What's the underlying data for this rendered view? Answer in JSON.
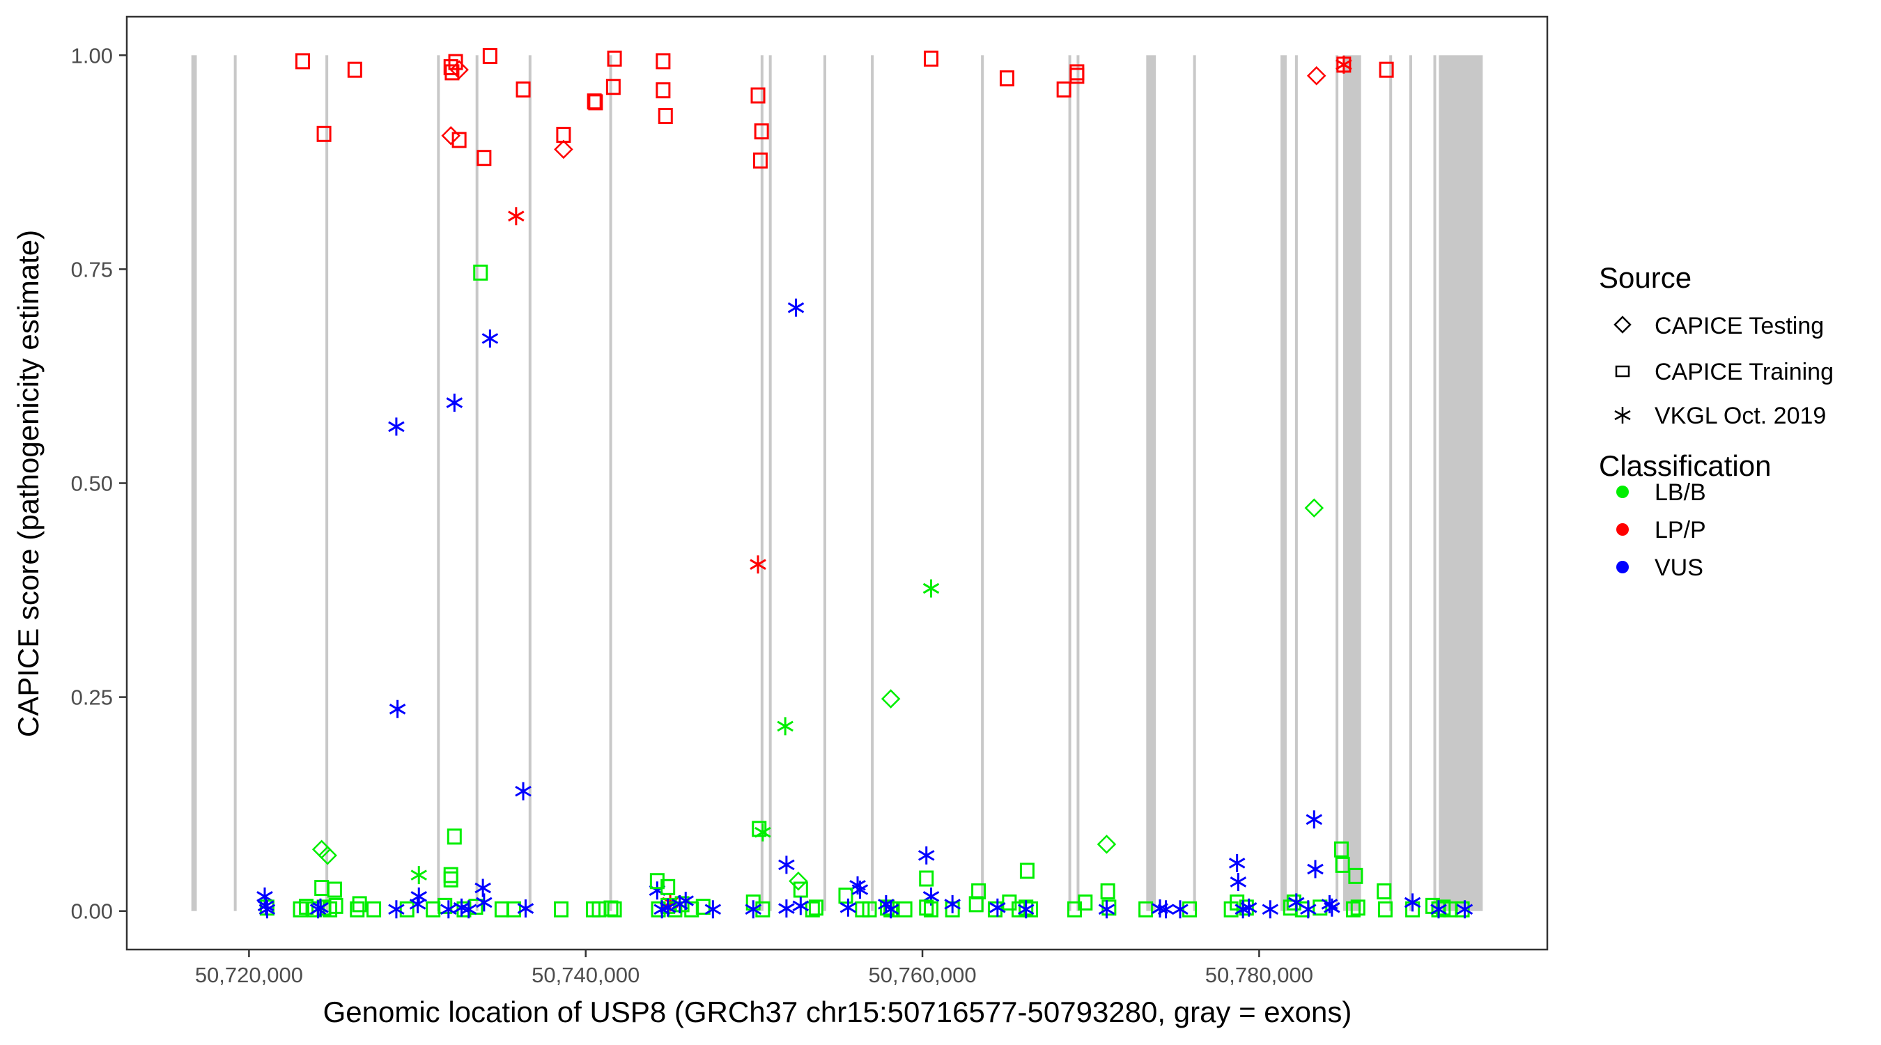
{
  "chart_data": {
    "type": "scatter",
    "xlabel": "Genomic location of USP8 (GRCh37 chr15:50716577-50793280, gray = exons)",
    "ylabel": "CAPICE score (pathogenicity estimate)",
    "xlim": [
      50712742,
      50797115
    ],
    "ylim": [
      -0.045,
      1.045
    ],
    "xticks": [
      50720000,
      50740000,
      50760000,
      50780000
    ],
    "xtick_labels": [
      "50,720,000",
      "50,740,000",
      "50,760,000",
      "50,780,000"
    ],
    "yticks": [
      0,
      0.25,
      0.5,
      0.75,
      1.0
    ],
    "ytick_labels": [
      "0.00",
      "0.25",
      "0.50",
      "0.75",
      "1.00"
    ],
    "grid": false,
    "legend_placement": "right",
    "legend": {
      "source_title": "Source",
      "sources": [
        {
          "label": "CAPICE Testing",
          "shape": "diamond"
        },
        {
          "label": "CAPICE Training",
          "shape": "square"
        },
        {
          "label": "VKGL Oct. 2019",
          "shape": "asterisk"
        }
      ],
      "classification_title": "Classification",
      "classes": [
        {
          "label": "LB/B",
          "color": "#00ee00"
        },
        {
          "label": "LP/P",
          "color": "#ff0000"
        },
        {
          "label": "VUS",
          "color": "#0000ff"
        }
      ]
    },
    "exon_color": "#c8c8c8",
    "exons": [
      [
        50716577,
        50716900
      ],
      [
        50719100,
        50719180
      ],
      [
        50724540,
        50724620
      ],
      [
        50731170,
        50731250
      ],
      [
        50733460,
        50733540
      ],
      [
        50736610,
        50736680
      ],
      [
        50741400,
        50741470
      ],
      [
        50750390,
        50750470
      ],
      [
        50750880,
        50750960
      ],
      [
        50754120,
        50754190
      ],
      [
        50756940,
        50757010
      ],
      [
        50763480,
        50763550
      ],
      [
        50768670,
        50768750
      ],
      [
        50769160,
        50769240
      ],
      [
        50773293,
        50773866
      ],
      [
        50776080,
        50776150
      ],
      [
        50781268,
        50781636
      ],
      [
        50782130,
        50782210
      ],
      [
        50784540,
        50784620
      ],
      [
        50784990,
        50786054
      ],
      [
        50787730,
        50787810
      ],
      [
        50788920,
        50789000
      ],
      [
        50790350,
        50790430
      ],
      [
        50790675,
        50793280
      ]
    ],
    "point_fields": [
      "position",
      "score",
      "source_index",
      "class_index"
    ],
    "points": [
      [
        50723188,
        0.993,
        1,
        1
      ],
      [
        50724456,
        0.908,
        1,
        1
      ],
      [
        50726287,
        0.983,
        1,
        1
      ],
      [
        50731992,
        0.986,
        1,
        1
      ],
      [
        50732062,
        0.98,
        1,
        1
      ],
      [
        50732274,
        0.992,
        1,
        1
      ],
      [
        50732485,
        0.901,
        1,
        1
      ],
      [
        50733964,
        0.88,
        1,
        1
      ],
      [
        50734316,
        0.999,
        1,
        1
      ],
      [
        50736288,
        0.96,
        1,
        1
      ],
      [
        50738683,
        0.907,
        1,
        1
      ],
      [
        50740514,
        0.946,
        1,
        1
      ],
      [
        50740585,
        0.945,
        1,
        1
      ],
      [
        50741711,
        0.996,
        1,
        1
      ],
      [
        50741640,
        0.963,
        1,
        1
      ],
      [
        50744599,
        0.993,
        1,
        1
      ],
      [
        50744599,
        0.959,
        1,
        1
      ],
      [
        50744740,
        0.929,
        1,
        1
      ],
      [
        50750233,
        0.953,
        1,
        1
      ],
      [
        50750445,
        0.911,
        1,
        1
      ],
      [
        50750374,
        0.877,
        1,
        1
      ],
      [
        50760516,
        0.996,
        1,
        1
      ],
      [
        50765024,
        0.973,
        1,
        1
      ],
      [
        50768404,
        0.96,
        1,
        1
      ],
      [
        50769179,
        0.98,
        1,
        1
      ],
      [
        50769179,
        0.976,
        1,
        1
      ],
      [
        50787561,
        0.983,
        1,
        1
      ],
      [
        50785026,
        0.989,
        1,
        1
      ],
      [
        50732485,
        0.983,
        0,
        1
      ],
      [
        50731992,
        0.906,
        0,
        1
      ],
      [
        50738683,
        0.89,
        0,
        1
      ],
      [
        50783406,
        0.976,
        0,
        1
      ],
      [
        50735866,
        0.812,
        2,
        1
      ],
      [
        50750233,
        0.405,
        2,
        1
      ],
      [
        50785026,
        0.989,
        2,
        1
      ],
      [
        50745022,
        0.01,
        2,
        1
      ],
      [
        50728752,
        0.566,
        2,
        2
      ],
      [
        50728822,
        0.236,
        2,
        2
      ],
      [
        50732203,
        0.594,
        2,
        2
      ],
      [
        50734316,
        0.669,
        2,
        2
      ],
      [
        50736288,
        0.14,
        2,
        2
      ],
      [
        50752487,
        0.705,
        2,
        2
      ],
      [
        50751924,
        0.054,
        2,
        2
      ],
      [
        50760235,
        0.065,
        2,
        2
      ],
      [
        50778687,
        0.056,
        2,
        2
      ],
      [
        50783265,
        0.107,
        2,
        2
      ],
      [
        50783336,
        0.049,
        2,
        2
      ],
      [
        50733893,
        0.027,
        2,
        2
      ],
      [
        50720935,
        0.017,
        2,
        2
      ],
      [
        50730090,
        0.017,
        2,
        2
      ],
      [
        50744247,
        0.024,
        2,
        2
      ],
      [
        50756150,
        0.03,
        2,
        2
      ],
      [
        50778757,
        0.034,
        2,
        2
      ],
      [
        50760516,
        0.017,
        2,
        2
      ],
      [
        50733752,
        0.746,
        1,
        0
      ],
      [
        50732203,
        0.087,
        1,
        0
      ],
      [
        50750304,
        0.096,
        1,
        0
      ],
      [
        50750515,
        0.092,
        2,
        0
      ],
      [
        50730090,
        0.042,
        2,
        0
      ],
      [
        50760516,
        0.377,
        2,
        0
      ],
      [
        50751852,
        0.216,
        2,
        0
      ],
      [
        50758121,
        0.248,
        0,
        0
      ],
      [
        50783265,
        0.471,
        0,
        0
      ],
      [
        50770940,
        0.078,
        0,
        0
      ],
      [
        50724315,
        0.072,
        0,
        0
      ],
      [
        50724667,
        0.065,
        0,
        0
      ],
      [
        50766222,
        0.047,
        1,
        0
      ],
      [
        50784885,
        0.072,
        1,
        0
      ],
      [
        50784955,
        0.054,
        1,
        0
      ],
      [
        50785730,
        0.041,
        1,
        0
      ],
      [
        50752628,
        0.035,
        0,
        0
      ],
      [
        50760235,
        0.038,
        1,
        0
      ],
      [
        50763333,
        0.023,
        1,
        0
      ],
      [
        50771010,
        0.023,
        1,
        0
      ],
      [
        50787420,
        0.023,
        1,
        0
      ],
      [
        50731992,
        0.042,
        1,
        0
      ],
      [
        50731992,
        0.037,
        1,
        0
      ],
      [
        50744247,
        0.035,
        1,
        0
      ],
      [
        50724315,
        0.027,
        1,
        0
      ],
      [
        50725090,
        0.025,
        1,
        0
      ],
      [
        50744881,
        0.028,
        1,
        0
      ],
      [
        50721075,
        0.004,
        1,
        0
      ],
      [
        50723048,
        0.002,
        1,
        0
      ],
      [
        50723400,
        0.005,
        1,
        0
      ],
      [
        50723893,
        0.002,
        1,
        0
      ],
      [
        50724456,
        0.004,
        1,
        0
      ],
      [
        50724808,
        0.002,
        1,
        0
      ],
      [
        50725160,
        0.006,
        1,
        0
      ],
      [
        50726428,
        0.002,
        1,
        0
      ],
      [
        50726569,
        0.008,
        1,
        0
      ],
      [
        50727414,
        0.002,
        1,
        0
      ],
      [
        50729386,
        0.002,
        1,
        0
      ],
      [
        50730936,
        0.002,
        1,
        0
      ],
      [
        50731640,
        0.006,
        1,
        0
      ],
      [
        50732767,
        0.002,
        1,
        0
      ],
      [
        50733471,
        0.005,
        1,
        0
      ],
      [
        50735021,
        0.002,
        1,
        0
      ],
      [
        50735725,
        0.002,
        1,
        0
      ],
      [
        50738542,
        0.002,
        1,
        0
      ],
      [
        50740444,
        0.002,
        1,
        0
      ],
      [
        50740796,
        0.002,
        1,
        0
      ],
      [
        50741500,
        0.003,
        1,
        0
      ],
      [
        50741711,
        0.002,
        1,
        0
      ],
      [
        50744317,
        0.002,
        1,
        0
      ],
      [
        50744881,
        0.006,
        1,
        0
      ],
      [
        50745303,
        0.002,
        1,
        0
      ],
      [
        50745726,
        0.008,
        1,
        0
      ],
      [
        50746289,
        0.002,
        1,
        0
      ],
      [
        50746975,
        0.005,
        1,
        0
      ],
      [
        50749952,
        0.01,
        1,
        0
      ],
      [
        50750515,
        0.002,
        1,
        0
      ],
      [
        50752769,
        0.025,
        1,
        0
      ],
      [
        50753473,
        0.002,
        1,
        0
      ],
      [
        50753684,
        0.004,
        1,
        0
      ],
      [
        50755445,
        0.018,
        1,
        0
      ],
      [
        50756431,
        0.002,
        1,
        0
      ],
      [
        50756854,
        0.002,
        1,
        0
      ],
      [
        50757910,
        0.004,
        1,
        0
      ],
      [
        50758121,
        0.002,
        1,
        0
      ],
      [
        50758967,
        0.002,
        1,
        0
      ],
      [
        50760235,
        0.004,
        1,
        0
      ],
      [
        50760516,
        0.002,
        1,
        0
      ],
      [
        50761784,
        0.002,
        1,
        0
      ],
      [
        50763193,
        0.008,
        1,
        0
      ],
      [
        50764319,
        0.002,
        1,
        0
      ],
      [
        50765165,
        0.01,
        1,
        0
      ],
      [
        50765728,
        0.002,
        1,
        0
      ],
      [
        50766151,
        0.004,
        1,
        0
      ],
      [
        50766433,
        0.002,
        1,
        0
      ],
      [
        50769038,
        0.002,
        1,
        0
      ],
      [
        50769672,
        0.01,
        1,
        0
      ],
      [
        50771081,
        0.004,
        1,
        0
      ],
      [
        50773264,
        0.002,
        1,
        0
      ],
      [
        50775870,
        0.002,
        1,
        0
      ],
      [
        50778335,
        0.002,
        1,
        0
      ],
      [
        50778687,
        0.01,
        1,
        0
      ],
      [
        50779251,
        0.004,
        1,
        0
      ],
      [
        50781857,
        0.004,
        1,
        0
      ],
      [
        50782068,
        0.01,
        1,
        0
      ],
      [
        50782561,
        0.002,
        1,
        0
      ],
      [
        50783617,
        0.004,
        1,
        0
      ],
      [
        50785589,
        0.002,
        1,
        0
      ],
      [
        50785870,
        0.004,
        1,
        0
      ],
      [
        50787491,
        0.002,
        1,
        0
      ],
      [
        50789111,
        0.002,
        1,
        0
      ],
      [
        50790308,
        0.006,
        1,
        0
      ],
      [
        50790660,
        0.002,
        1,
        0
      ],
      [
        50790942,
        0.004,
        1,
        0
      ],
      [
        50791365,
        0.002,
        1,
        0
      ],
      [
        50792069,
        0.002,
        1,
        0
      ],
      [
        50721005,
        0.006,
        2,
        2
      ],
      [
        50721075,
        0.002,
        2,
        2
      ],
      [
        50724104,
        0.002,
        2,
        2
      ],
      [
        50724245,
        0.004,
        2,
        2
      ],
      [
        50728752,
        0.002,
        2,
        2
      ],
      [
        50730020,
        0.008,
        2,
        2
      ],
      [
        50731851,
        0.002,
        2,
        2
      ],
      [
        50732626,
        0.004,
        2,
        2
      ],
      [
        50733049,
        0.002,
        2,
        2
      ],
      [
        50733964,
        0.01,
        2,
        2
      ],
      [
        50736429,
        0.003,
        2,
        2
      ],
      [
        50744529,
        0.002,
        2,
        2
      ],
      [
        50744881,
        0.004,
        2,
        2
      ],
      [
        50745585,
        0.008,
        2,
        2
      ],
      [
        50745938,
        0.012,
        2,
        2
      ],
      [
        50747557,
        0.002,
        2,
        2
      ],
      [
        50749952,
        0.002,
        2,
        2
      ],
      [
        50751924,
        0.003,
        2,
        2
      ],
      [
        50752769,
        0.006,
        2,
        2
      ],
      [
        50755586,
        0.004,
        2,
        2
      ],
      [
        50756290,
        0.025,
        2,
        2
      ],
      [
        50757840,
        0.008,
        2,
        2
      ],
      [
        50758121,
        0.002,
        2,
        2
      ],
      [
        50761784,
        0.008,
        2,
        2
      ],
      [
        50764460,
        0.004,
        2,
        2
      ],
      [
        50766151,
        0.002,
        2,
        2
      ],
      [
        50770940,
        0.002,
        2,
        2
      ],
      [
        50774109,
        0.003,
        2,
        2
      ],
      [
        50774461,
        0.002,
        2,
        2
      ],
      [
        50775307,
        0.002,
        2,
        2
      ],
      [
        50779039,
        0.002,
        2,
        2
      ],
      [
        50779391,
        0.004,
        2,
        2
      ],
      [
        50780659,
        0.002,
        2,
        2
      ],
      [
        50782209,
        0.01,
        2,
        2
      ],
      [
        50782913,
        0.002,
        2,
        2
      ],
      [
        50784181,
        0.008,
        2,
        2
      ],
      [
        50784322,
        0.004,
        2,
        2
      ],
      [
        50789111,
        0.01,
        2,
        2
      ],
      [
        50790660,
        0.002,
        2,
        2
      ],
      [
        50792210,
        0.002,
        2,
        2
      ]
    ]
  }
}
